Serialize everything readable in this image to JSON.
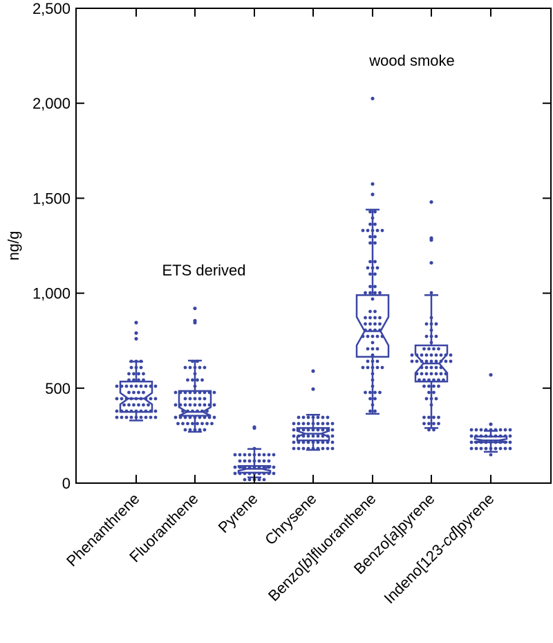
{
  "chart_data": {
    "type": "box",
    "ylabel": "ng/g",
    "ylim": [
      0,
      2500
    ],
    "yticks": [
      0,
      500,
      1000,
      1500,
      2000,
      2500
    ],
    "ytick_labels": [
      "0",
      "500",
      "1,000",
      "1,500",
      "2,000",
      "2,500"
    ],
    "categories": [
      {
        "label": "Phenanthrene"
      },
      {
        "label": "Fluoranthene"
      },
      {
        "label": "Pyrene"
      },
      {
        "label": "Chrysene"
      },
      {
        "label": "Benzo[b]fluoranthene",
        "parts": [
          "Benzo[",
          "b",
          "]fluoranthene"
        ]
      },
      {
        "label": "Benzo[a]pyrene",
        "parts": [
          "Benzo[",
          "a",
          "]pyrene"
        ]
      },
      {
        "label": "Indeno[123-cd]pyrene",
        "parts": [
          "Indeno[123-",
          "cd",
          "]pyrene"
        ]
      }
    ],
    "boxes": [
      {
        "q1": 375,
        "median": 445,
        "q3": 535,
        "whisker_low": 330,
        "whisker_high": 640,
        "notch": 30
      },
      {
        "q1": 355,
        "median": 375,
        "q3": 485,
        "whisker_low": 270,
        "whisker_high": 645,
        "notch": 25
      },
      {
        "q1": 55,
        "median": 75,
        "q3": 90,
        "whisker_low": 30,
        "whisker_high": 180,
        "notch": 10
      },
      {
        "q1": 225,
        "median": 260,
        "q3": 290,
        "whisker_low": 175,
        "whisker_high": 360,
        "notch": 15
      },
      {
        "q1": 665,
        "median": 800,
        "q3": 990,
        "whisker_low": 365,
        "whisker_high": 1440,
        "notch": 75
      },
      {
        "q1": 535,
        "median": 630,
        "q3": 725,
        "whisker_low": 290,
        "whisker_high": 990,
        "notch": 50
      },
      {
        "q1": 215,
        "median": 225,
        "q3": 245,
        "whisker_low": 165,
        "whisker_high": 275,
        "notch": 8
      }
    ],
    "outliers": [
      [
        760,
        790,
        845
      ],
      [
        845,
        855,
        920
      ],
      [
        290,
        295
      ],
      [
        495,
        590
      ],
      [
        1520,
        1575,
        2025
      ],
      [
        1160,
        1280,
        1290,
        1480
      ],
      [
        310,
        570
      ]
    ],
    "annotations": [
      {
        "text": "ETS derived",
        "y": 1125
      },
      {
        "text": "wood smoke",
        "y": 2225
      }
    ]
  },
  "colors": {
    "series": "#3a46a4",
    "axis": "#000000"
  }
}
